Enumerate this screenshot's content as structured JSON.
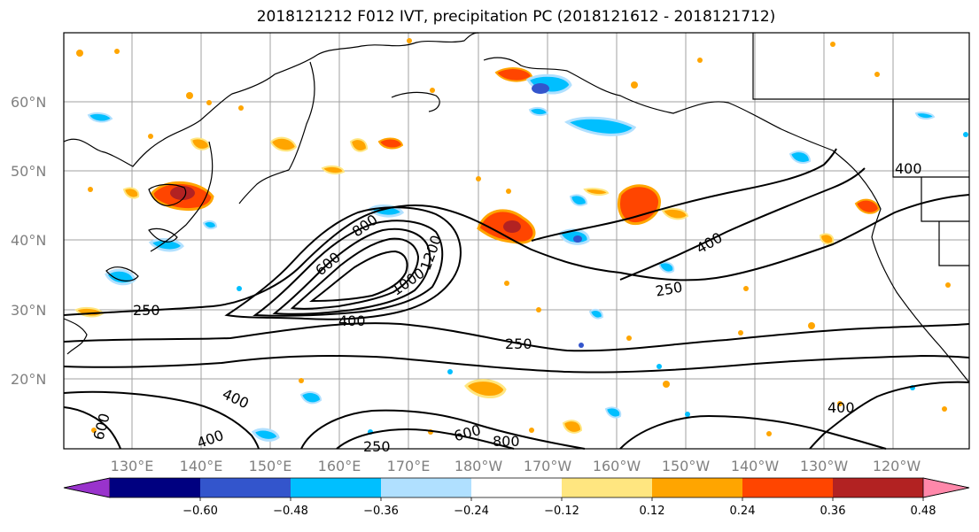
{
  "title": "2018121212 F012 IVT, precipitation PC (2018121612 - 2018121712)",
  "lat_labels": [
    "60°N",
    "50°N",
    "40°N",
    "30°N",
    "20°N"
  ],
  "lon_labels": [
    "130°E",
    "140°E",
    "150°E",
    "160°E",
    "170°E",
    "180°W",
    "170°W",
    "160°W",
    "150°W",
    "140°W",
    "130°W",
    "120°W"
  ],
  "contour_labels": [
    "250",
    "400",
    "600",
    "800",
    "1000",
    "1200",
    "250",
    "400",
    "250",
    "400",
    "600",
    "800",
    "600",
    "400",
    "400",
    "250",
    "400"
  ],
  "colorbar": {
    "colors": [
      "#9933cc",
      "#000080",
      "#3355cc",
      "#00bfff",
      "#b0e0ff",
      "#ffffff",
      "#ffe680",
      "#ffa500",
      "#ff4500",
      "#b22222",
      "#ff88aa"
    ],
    "labels": [
      "−0.60",
      "−0.48",
      "−0.36",
      "−0.24",
      "−0.12",
      "0.12",
      "0.24",
      "0.36",
      "0.48",
      "0.60"
    ]
  }
}
